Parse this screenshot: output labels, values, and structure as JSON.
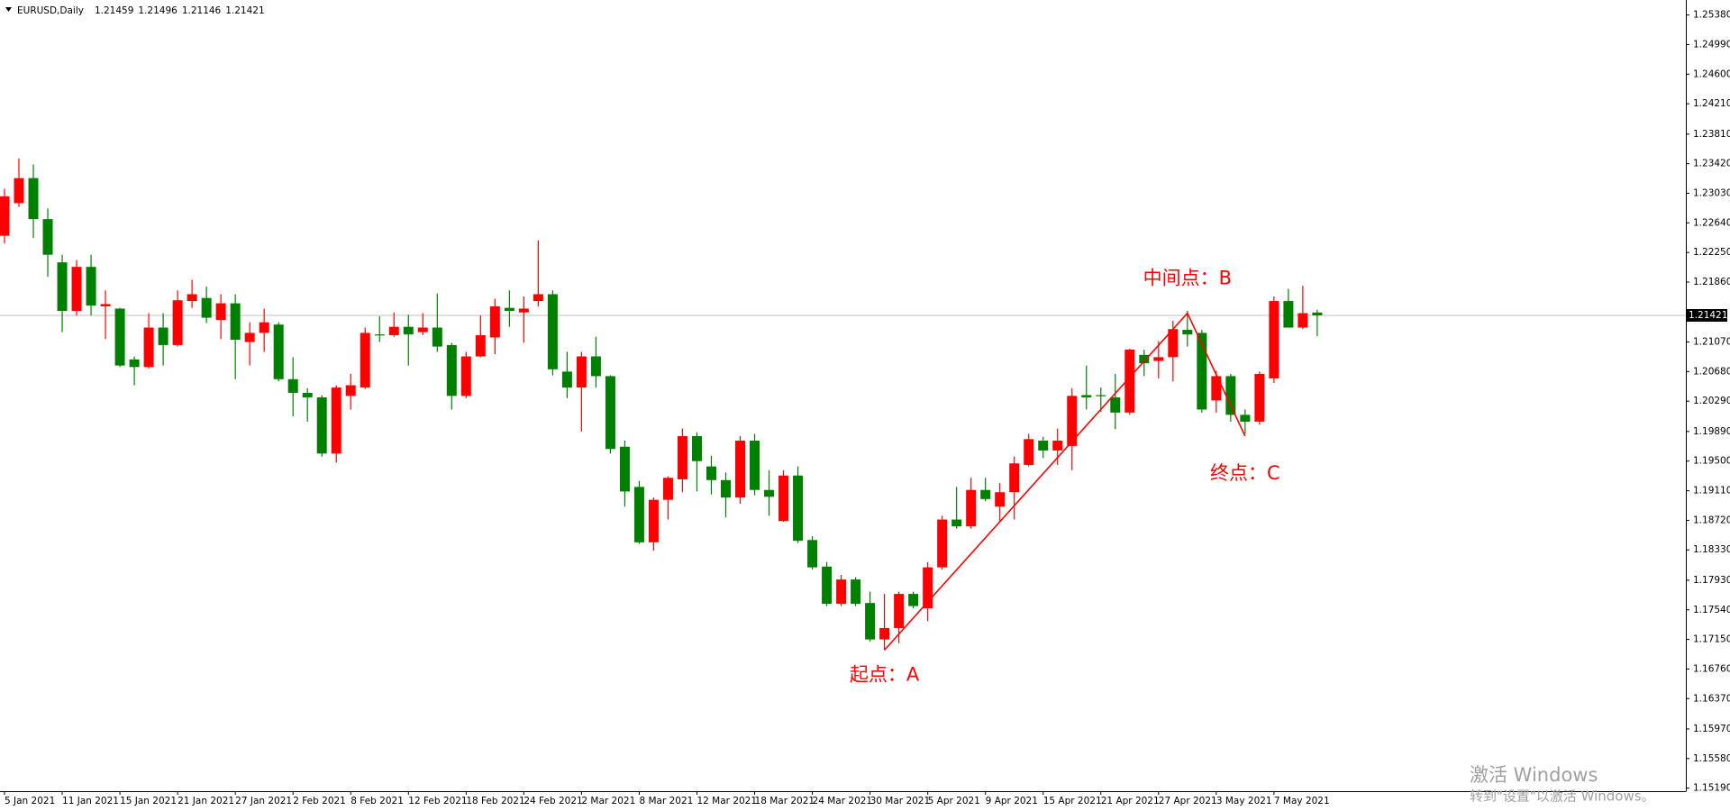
{
  "chart_data": {
    "type": "candlestick",
    "title": "EURUSD,Daily",
    "up_color": "#ff0000",
    "down_color": "#008000",
    "categories": [
      "5 Jan 2021",
      null,
      null,
      null,
      "11 Jan 2021",
      null,
      null,
      null,
      "15 Jan 2021",
      null,
      null,
      null,
      "21 Jan 2021",
      null,
      null,
      null,
      "27 Jan 2021",
      null,
      null,
      null,
      "2 Feb 2021",
      null,
      null,
      null,
      "8 Feb 2021",
      null,
      null,
      null,
      "12 Feb 2021",
      null,
      null,
      null,
      "18 Feb 2021",
      null,
      null,
      null,
      "24 Feb 2021",
      null,
      null,
      null,
      "2 Mar 2021",
      null,
      null,
      null,
      "8 Mar 2021",
      null,
      null,
      null,
      "12 Mar 2021",
      null,
      null,
      null,
      "18 Mar 2021",
      null,
      null,
      null,
      "24 Mar 2021",
      null,
      null,
      null,
      "30 Mar 2021",
      null,
      null,
      null,
      "5 Apr 2021",
      null,
      null,
      null,
      "9 Apr 2021",
      null,
      null,
      null,
      "15 Apr 2021",
      null,
      null,
      null,
      "21 Apr 2021",
      null,
      null,
      null,
      "27 Apr 2021",
      null,
      null,
      null,
      "3 May 2021",
      null,
      null,
      null,
      "7 May 2021",
      null,
      null,
      null
    ],
    "open": [
      1.2247,
      1.229,
      1.2323,
      1.2269,
      1.2212,
      1.2148,
      1.2206,
      1.2154,
      1.2151,
      1.2084,
      1.2074,
      1.2126,
      1.2103,
      1.2161,
      1.2165,
      1.2136,
      1.2158,
      1.2107,
      1.2119,
      1.213,
      1.2058,
      1.204,
      1.2034,
      1.196,
      1.2036,
      1.2047,
      1.2117,
      1.2116,
      1.2127,
      1.212,
      1.2126,
      1.2103,
      1.2036,
      1.2088,
      1.2113,
      1.2152,
      1.2146,
      1.2161,
      1.217,
      1.2068,
      1.2047,
      1.2088,
      1.2062,
      1.1969,
      1.1916,
      1.1843,
      1.1899,
      1.1926,
      1.1983,
      1.1943,
      1.1925,
      1.1902,
      1.1977,
      1.1912,
      1.1871,
      1.1931,
      1.1846,
      1.1811,
      1.1762,
      1.1794,
      1.1763,
      1.1715,
      1.173,
      1.1775,
      1.1756,
      1.181,
      1.1873,
      1.1864,
      1.1912,
      1.189,
      1.1909,
      1.1945,
      1.1977,
      1.1964,
      1.197,
      1.2037,
      1.2037,
      1.2034,
      1.2014,
      1.209,
      1.2082,
      1.2087,
      1.2123,
      1.2119,
      1.203,
      1.2062,
      1.2011,
      1.2002,
      1.2059,
      1.2161,
      1.2126,
      1.21459
    ],
    "high": [
      1.2309,
      1.2349,
      1.2341,
      1.2283,
      1.2222,
      1.2215,
      1.2222,
      1.2175,
      1.2152,
      1.2088,
      1.2145,
      1.2145,
      1.2175,
      1.2189,
      1.218,
      1.217,
      1.217,
      1.2133,
      1.2151,
      1.2133,
      1.2087,
      1.2046,
      1.2037,
      1.205,
      1.2065,
      1.2126,
      1.2141,
      1.2146,
      1.2143,
      1.2145,
      1.2171,
      1.2106,
      1.2094,
      1.2142,
      1.2164,
      1.2175,
      1.2167,
      1.2241,
      1.2175,
      1.2094,
      1.2094,
      1.2114,
      1.2063,
      1.1977,
      1.1924,
      1.1902,
      1.193,
      1.1993,
      1.1988,
      1.1957,
      1.1935,
      1.1983,
      1.1986,
      1.1938,
      1.1938,
      1.1943,
      1.1851,
      1.1817,
      1.18,
      1.1797,
      1.1778,
      1.1775,
      1.1778,
      1.1778,
      1.1817,
      1.1878,
      1.1916,
      1.1928,
      1.1928,
      1.1921,
      1.1956,
      1.1986,
      1.1982,
      1.1993,
      1.2046,
      1.2076,
      1.2047,
      1.2065,
      1.2098,
      1.2097,
      1.2108,
      1.2135,
      1.2148,
      1.2123,
      1.2069,
      1.2065,
      1.2018,
      1.2068,
      1.2167,
      1.2177,
      1.2181,
      1.21496
    ],
    "low": [
      1.2237,
      1.2285,
      1.2244,
      1.2193,
      1.212,
      1.2142,
      1.2142,
      1.2111,
      1.2074,
      1.205,
      1.2072,
      1.2076,
      1.2101,
      1.2152,
      1.2132,
      1.2111,
      1.2058,
      1.2076,
      1.2094,
      1.2055,
      1.2009,
      1.2002,
      1.1956,
      1.1948,
      1.2018,
      1.2045,
      1.2107,
      1.2114,
      1.2076,
      1.2116,
      1.2094,
      1.2018,
      1.2033,
      1.2087,
      1.2091,
      1.2127,
      1.2106,
      1.2154,
      1.2063,
      1.2033,
      1.1989,
      1.2047,
      1.196,
      1.189,
      1.1841,
      1.1832,
      1.1873,
      1.1909,
      1.191,
      1.1906,
      1.1876,
      1.1894,
      1.1905,
      1.1878,
      1.187,
      1.1842,
      1.1807,
      1.1759,
      1.1759,
      1.1759,
      1.1712,
      1.1701,
      1.171,
      1.1756,
      1.1739,
      1.1807,
      1.1861,
      1.1861,
      1.1897,
      1.187,
      1.1873,
      1.1943,
      1.1954,
      1.1945,
      1.1938,
      1.2018,
      1.2015,
      1.1992,
      1.2011,
      1.2062,
      1.2059,
      1.2055,
      1.2101,
      1.2014,
      1.2014,
      1.2002,
      1.1986,
      1.1998,
      1.2053,
      1.2126,
      1.2124,
      1.21146
    ],
    "close": [
      1.2299,
      1.2323,
      1.2269,
      1.2222,
      1.2148,
      1.2206,
      1.2155,
      1.2157,
      1.2076,
      1.2074,
      1.2126,
      1.2103,
      1.2162,
      1.217,
      1.2139,
      1.2158,
      1.211,
      1.2119,
      1.2133,
      1.2058,
      1.204,
      1.2034,
      1.196,
      1.2047,
      1.205,
      1.2119,
      1.2116,
      1.2127,
      1.2117,
      1.2126,
      1.2101,
      1.2036,
      1.2088,
      1.2116,
      1.2154,
      1.2148,
      1.2151,
      1.217,
      1.2071,
      1.2047,
      1.2088,
      1.2062,
      1.1966,
      1.191,
      1.1843,
      1.1899,
      1.1928,
      1.1983,
      1.195,
      1.1925,
      1.1902,
      1.1977,
      1.1912,
      1.1903,
      1.1931,
      1.1845,
      1.181,
      1.1762,
      1.1794,
      1.1762,
      1.1715,
      1.173,
      1.1775,
      1.1759,
      1.181,
      1.1873,
      1.1864,
      1.1912,
      1.19,
      1.1909,
      1.1947,
      1.1979,
      1.1964,
      1.1977,
      1.2036,
      1.2034,
      1.2036,
      1.2014,
      1.2097,
      1.2079,
      1.2087,
      1.2124,
      1.2117,
      1.2018,
      1.2062,
      1.2011,
      1.2002,
      1.2065,
      1.2161,
      1.2126,
      1.2145,
      1.21421
    ],
    "ylim": [
      1.1515,
      1.2553
    ],
    "yticks": [
      {
        "value": 1.2538,
        "label": "1.25380"
      },
      {
        "value": 1.2499,
        "label": "1.24990"
      },
      {
        "value": 1.246,
        "label": "1.24600"
      },
      {
        "value": 1.2421,
        "label": "1.24210"
      },
      {
        "value": 1.2381,
        "label": "1.23810"
      },
      {
        "value": 1.2342,
        "label": "1.23420"
      },
      {
        "value": 1.2303,
        "label": "1.23030"
      },
      {
        "value": 1.2264,
        "label": "1.22640"
      },
      {
        "value": 1.2225,
        "label": "1.22250"
      },
      {
        "value": 1.2186,
        "label": "1.21860"
      },
      {
        "value": 1.2107,
        "label": "1.21070"
      },
      {
        "value": 1.2068,
        "label": "1.20680"
      },
      {
        "value": 1.2029,
        "label": "1.20290"
      },
      {
        "value": 1.1989,
        "label": "1.19890"
      },
      {
        "value": 1.195,
        "label": "1.19500"
      },
      {
        "value": 1.1911,
        "label": "1.19110"
      },
      {
        "value": 1.1872,
        "label": "1.18720"
      },
      {
        "value": 1.1833,
        "label": "1.18330"
      },
      {
        "value": 1.1793,
        "label": "1.17930"
      },
      {
        "value": 1.1754,
        "label": "1.17540"
      },
      {
        "value": 1.1715,
        "label": "1.17150"
      },
      {
        "value": 1.1676,
        "label": "1.16760"
      },
      {
        "value": 1.1637,
        "label": "1.16370"
      },
      {
        "value": 1.1597,
        "label": "1.15970"
      },
      {
        "value": 1.1558,
        "label": "1.15580"
      },
      {
        "value": 1.1519,
        "label": "1.15190"
      }
    ],
    "grid": false,
    "annotations": [
      {
        "label": "起点：A",
        "x": 61,
        "y": 1.1701
      },
      {
        "label": "中间点：B",
        "x": 82,
        "y": 1.2145
      },
      {
        "label": "终点：C",
        "x": 86,
        "y": 1.1983
      }
    ],
    "annotation_color": "#ff0000"
  },
  "watermark": {
    "title": "激活 Windows",
    "subtitle": "转到\"设置\"以激活 Windows。"
  }
}
